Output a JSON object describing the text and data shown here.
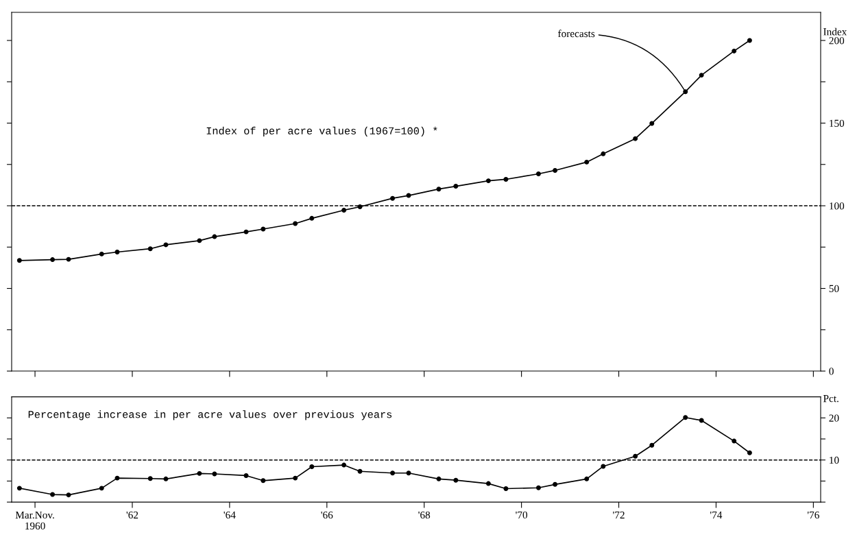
{
  "chart_data": [
    {
      "type": "line",
      "ylabel": "Index",
      "annotations": [
        "Index of per acre values (1967=100) *",
        {
          "text": "forecasts",
          "x": 1973.37,
          "y": 169
        }
      ],
      "x": [
        1959.68,
        1960.36,
        1960.69,
        1961.37,
        1961.69,
        1962.37,
        1962.69,
        1963.38,
        1963.69,
        1964.34,
        1964.69,
        1965.35,
        1965.69,
        1966.35,
        1966.68,
        1967.35,
        1967.68,
        1968.3,
        1968.65,
        1969.32,
        1969.68,
        1970.35,
        1970.69,
        1971.34,
        1971.68,
        1972.34,
        1972.68,
        1973.37,
        1973.7,
        1974.37,
        1974.69
      ],
      "series": [
        {
          "color": "#000000",
          "values": [
            66.9,
            67.4,
            67.6,
            70.8,
            72.0,
            74.0,
            76.4,
            78.9,
            81.3,
            84.2,
            85.9,
            89.2,
            92.4,
            97.3,
            99.4,
            104.5,
            106.2,
            110.1,
            111.8,
            115.1,
            116.0,
            119.3,
            121.4,
            126.4,
            131.4,
            140.6,
            149.8,
            169.0,
            179.0,
            193.6,
            200.0
          ]
        }
      ],
      "xlim": [
        1959.52,
        1976.15
      ],
      "xticks": [
        1960,
        1962,
        1964,
        1966,
        1968,
        1970,
        1972,
        1974,
        1976
      ],
      "ylim": [
        0,
        217
      ],
      "yticks": [
        0,
        {
          "value": 25,
          "label": null
        },
        50,
        {
          "value": 75,
          "label": null
        },
        100,
        {
          "value": 125,
          "label": null
        },
        150,
        {
          "value": 175,
          "label": null
        },
        200
      ],
      "tick_labels": "y",
      "marker": "circle",
      "line_style": "solid",
      "grid": false,
      "legend": false,
      "ref_lines": [
        {
          "axis": "y",
          "value": 100,
          "label": null,
          "color": "#000000",
          "line_style": "dashed"
        }
      ]
    },
    {
      "type": "line",
      "ylabel": "Pct.",
      "annotations": [
        "Percentage increase in per acre values over previous years"
      ],
      "x": [
        1959.68,
        1960.36,
        1960.69,
        1961.37,
        1961.69,
        1962.37,
        1962.69,
        1963.38,
        1963.69,
        1964.34,
        1964.69,
        1965.35,
        1965.69,
        1966.35,
        1966.68,
        1967.35,
        1967.68,
        1968.3,
        1968.65,
        1969.32,
        1969.68,
        1970.35,
        1970.69,
        1971.34,
        1971.68,
        1972.34,
        1972.68,
        1973.37,
        1973.7,
        1974.37,
        1974.69
      ],
      "series": [
        {
          "color": "#000000",
          "values": [
            3.3,
            1.8,
            1.7,
            3.3,
            5.7,
            5.6,
            5.5,
            6.8,
            6.7,
            6.3,
            5.1,
            5.7,
            8.4,
            8.8,
            7.3,
            6.9,
            6.9,
            5.5,
            5.2,
            4.4,
            3.2,
            3.4,
            4.2,
            5.5,
            8.5,
            10.9,
            13.5,
            20.1,
            19.4,
            14.5,
            11.7
          ]
        }
      ],
      "xlim": [
        1959.52,
        1976.15
      ],
      "xticks": [
        {
          "value": 1960,
          "label": "Mar.Nov.\n1960"
        },
        {
          "value": 1962,
          "label": "'62"
        },
        {
          "value": 1964,
          "label": "'64"
        },
        {
          "value": 1966,
          "label": "'66"
        },
        {
          "value": 1968,
          "label": "'68"
        },
        {
          "value": 1970,
          "label": "'70"
        },
        {
          "value": 1972,
          "label": "'72"
        },
        {
          "value": 1974,
          "label": "'74"
        },
        {
          "value": 1976,
          "label": "'76"
        }
      ],
      "ylim": [
        0,
        25
      ],
      "yticks": [
        {
          "value": 0,
          "label": null
        },
        {
          "value": 5,
          "label": null
        },
        10,
        {
          "value": 15,
          "label": null
        },
        20
      ],
      "marker": "circle",
      "line_style": "solid",
      "grid": false,
      "legend": false,
      "ref_lines": [
        {
          "axis": "y",
          "value": 10,
          "label": null,
          "color": "#000000",
          "line_style": "dashed"
        }
      ]
    }
  ]
}
